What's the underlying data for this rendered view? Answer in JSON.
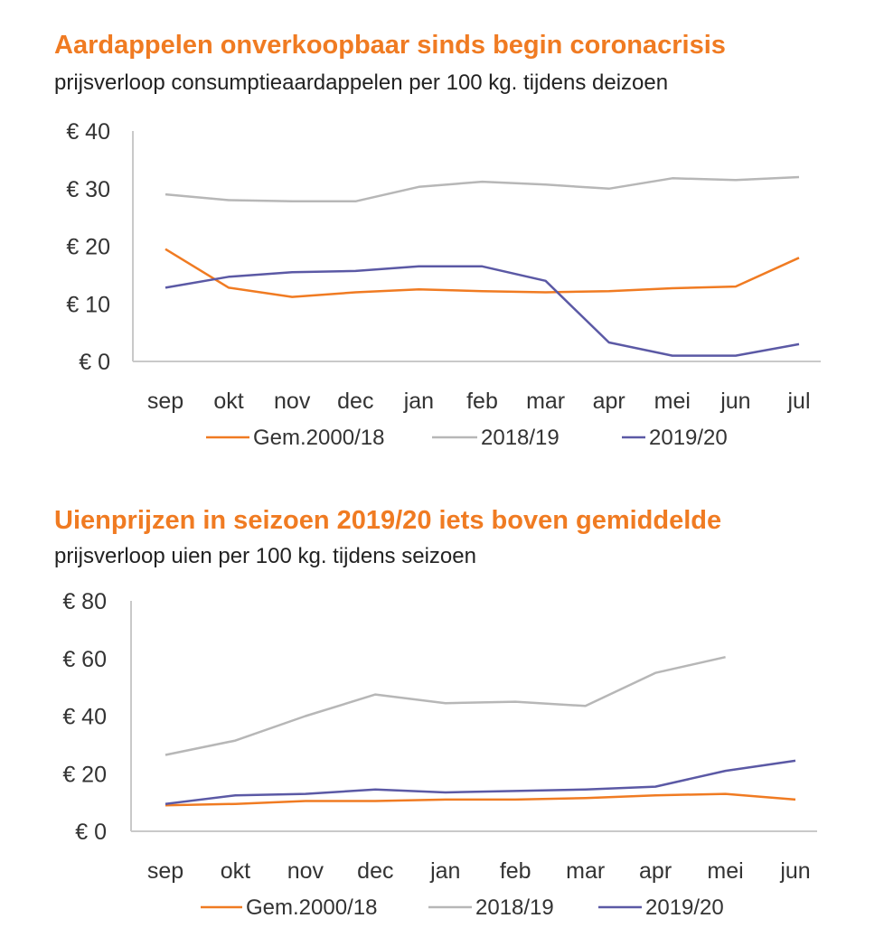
{
  "chart_data": [
    {
      "type": "line",
      "title": "Aardappelen onverkoopbaar sinds begin coronacrisis",
      "subtitle": "prijsverloop consumptieaardappelen per 100 kg. tijdens deizoen",
      "categories": [
        "sep",
        "okt",
        "nov",
        "dec",
        "jan",
        "feb",
        "mar",
        "apr",
        "mei",
        "jun",
        "jul"
      ],
      "yticks": [
        "€ 0",
        "€ 10",
        "€ 20",
        "€ 30",
        "€ 40"
      ],
      "ylim": [
        0,
        40
      ],
      "grid": false,
      "legend_position": "bottom",
      "series": [
        {
          "name": "Gem.2000/18",
          "color": "#f07b22",
          "values": [
            19.5,
            12.8,
            11.2,
            12.0,
            12.5,
            12.2,
            12.0,
            12.2,
            12.7,
            13.0,
            18.0
          ]
        },
        {
          "name": "2018/19",
          "color": "#b7b7b7",
          "values": [
            29.0,
            28.0,
            27.8,
            27.8,
            30.3,
            31.2,
            30.7,
            30.0,
            31.8,
            31.5,
            32.0
          ]
        },
        {
          "name": "2019/20",
          "color": "#5b59a5",
          "values": [
            12.8,
            14.7,
            15.5,
            15.7,
            16.5,
            16.5,
            14.0,
            3.3,
            1.0,
            1.0,
            3.0
          ]
        }
      ]
    },
    {
      "type": "line",
      "title": "Uienprijzen in seizoen 2019/20 iets boven gemiddelde",
      "subtitle": "prijsverloop uien per 100 kg. tijdens seizoen",
      "categories": [
        "sep",
        "okt",
        "nov",
        "dec",
        "jan",
        "feb",
        "mar",
        "apr",
        "mei",
        "jun"
      ],
      "yticks": [
        "€ 0",
        "€ 20",
        "€ 40",
        "€ 60",
        "€ 80"
      ],
      "ylim": [
        0,
        80
      ],
      "grid": false,
      "legend_position": "bottom",
      "series": [
        {
          "name": "Gem.2000/18",
          "color": "#f07b22",
          "values": [
            9.0,
            9.5,
            10.5,
            10.5,
            11.0,
            11.0,
            11.5,
            12.5,
            13.0,
            11.0
          ]
        },
        {
          "name": "2018/19",
          "color": "#b7b7b7",
          "values": [
            26.5,
            31.5,
            40.0,
            47.5,
            44.5,
            45.0,
            43.5,
            55.0,
            60.5,
            null
          ]
        },
        {
          "name": "2019/20",
          "color": "#5b59a5",
          "values": [
            9.5,
            12.5,
            13.0,
            14.5,
            13.5,
            14.0,
            14.5,
            15.5,
            21.0,
            24.5
          ]
        }
      ]
    }
  ]
}
